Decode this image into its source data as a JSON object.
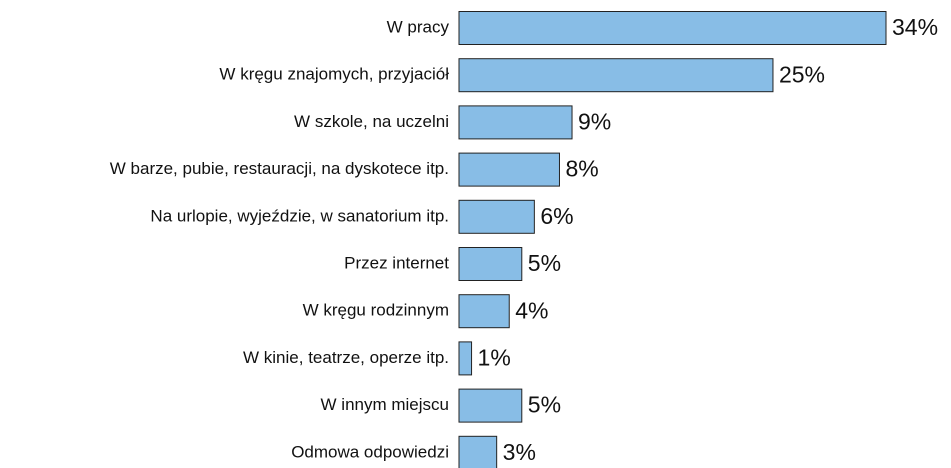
{
  "chart_data": {
    "type": "bar",
    "orientation": "horizontal",
    "categories": [
      "W pracy",
      "W kręgu znajomych, przyjaciół",
      "W szkole, na uczelni",
      "W barze, pubie, restauracji, na dyskotece itp.",
      "Na urlopie, wyjeździe, w sanatorium itp.",
      "Przez internet",
      "W kręgu rodzinnym",
      "W kinie, teatrze, operze itp.",
      "W innym miejscu",
      "Odmowa odpowiedzi"
    ],
    "values": [
      34,
      25,
      9,
      8,
      6,
      5,
      4,
      1,
      5,
      3
    ],
    "value_labels": [
      "34%",
      "25%",
      "9%",
      "8%",
      "6%",
      "5%",
      "4%",
      "1%",
      "5%",
      "3%"
    ],
    "color": "#88bde6"
  }
}
